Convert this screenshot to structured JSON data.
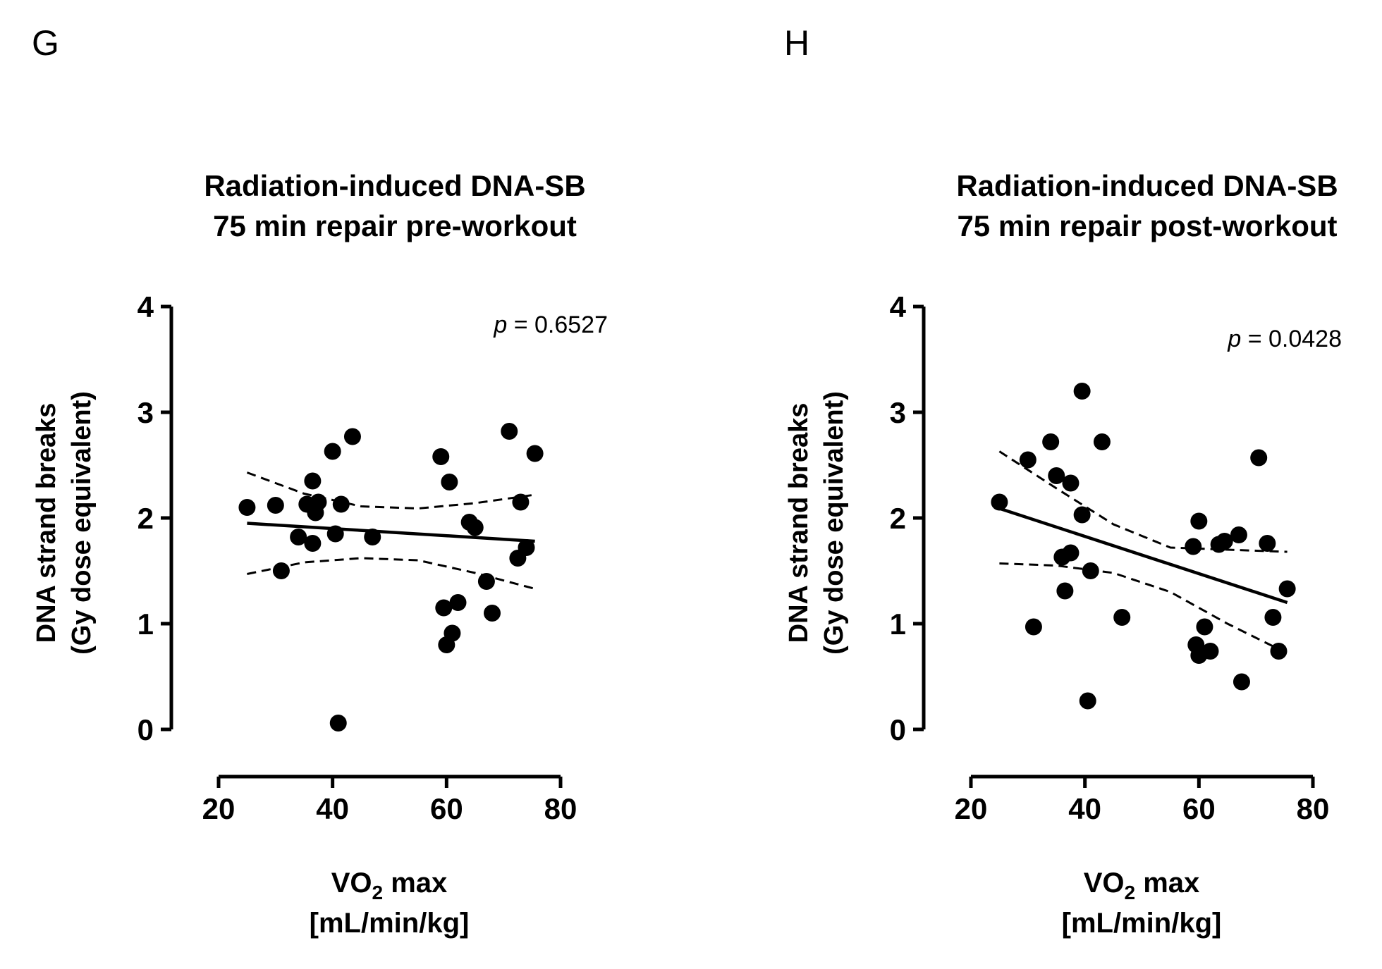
{
  "chart_data": [
    {
      "type": "scatter",
      "panel_label": "G",
      "title_lines": [
        "Radiation-induced DNA-SB",
        "75 min repair pre-workout"
      ],
      "ylabel_lines": [
        "DNA strand breaks",
        "(Gy dose equivalent)"
      ],
      "xlabel": {
        "main": "VO",
        "subscript": "2",
        "suffix": " max",
        "unit": "[mL/min/kg]"
      },
      "xlim": [
        20,
        80
      ],
      "ylim": [
        0,
        4
      ],
      "xticks": [
        20,
        40,
        60,
        80
      ],
      "yticks": [
        0,
        1,
        2,
        3,
        4
      ],
      "p_value": {
        "symbol": "p",
        "text": " = 0.6527"
      },
      "points": [
        [
          25,
          2.1
        ],
        [
          30,
          2.12
        ],
        [
          31,
          1.5
        ],
        [
          34,
          1.82
        ],
        [
          35.5,
          2.13
        ],
        [
          36.5,
          1.76
        ],
        [
          36.5,
          2.35
        ],
        [
          37,
          2.05
        ],
        [
          37.5,
          2.15
        ],
        [
          40,
          2.63
        ],
        [
          40.5,
          1.85
        ],
        [
          41,
          0.06
        ],
        [
          41.5,
          2.13
        ],
        [
          43.5,
          2.77
        ],
        [
          47,
          1.82
        ],
        [
          59,
          2.58
        ],
        [
          59.5,
          1.15
        ],
        [
          60,
          0.8
        ],
        [
          60.5,
          2.34
        ],
        [
          61,
          0.91
        ],
        [
          62,
          1.2
        ],
        [
          64,
          1.96
        ],
        [
          65,
          1.91
        ],
        [
          67,
          1.4
        ],
        [
          68,
          1.1
        ],
        [
          71,
          2.82
        ],
        [
          72.5,
          1.62
        ],
        [
          73,
          2.15
        ],
        [
          74,
          1.72
        ],
        [
          75.5,
          2.61
        ]
      ],
      "fit": {
        "x": [
          25,
          75.5
        ],
        "y": [
          1.95,
          1.78
        ]
      },
      "ci_upper": {
        "x": [
          25,
          35,
          45,
          55,
          65,
          75.5
        ],
        "y": [
          2.43,
          2.23,
          2.11,
          2.09,
          2.14,
          2.22
        ]
      },
      "ci_lower": {
        "x": [
          25,
          35,
          45,
          55,
          65,
          75.5
        ],
        "y": [
          1.47,
          1.58,
          1.62,
          1.6,
          1.48,
          1.33
        ]
      }
    },
    {
      "type": "scatter",
      "panel_label": "H",
      "title_lines": [
        "Radiation-induced DNA-SB",
        "75 min repair post-workout"
      ],
      "ylabel_lines": [
        "DNA strand breaks",
        "(Gy dose equivalent)"
      ],
      "xlabel": {
        "main": "VO",
        "subscript": "2",
        "suffix": " max",
        "unit": "[mL/min/kg]"
      },
      "xlim": [
        20,
        80
      ],
      "ylim": [
        0,
        4
      ],
      "xticks": [
        20,
        40,
        60,
        80
      ],
      "yticks": [
        0,
        1,
        2,
        3,
        4
      ],
      "p_value": {
        "symbol": "p",
        "text": " = 0.0428"
      },
      "points": [
        [
          25,
          2.15
        ],
        [
          30,
          2.55
        ],
        [
          31,
          0.97
        ],
        [
          34,
          2.72
        ],
        [
          35,
          2.4
        ],
        [
          36,
          1.63
        ],
        [
          36.5,
          1.31
        ],
        [
          37.5,
          1.67
        ],
        [
          37.5,
          2.33
        ],
        [
          39.5,
          3.2
        ],
        [
          39.5,
          2.03
        ],
        [
          40.5,
          0.27
        ],
        [
          41,
          1.5
        ],
        [
          43,
          2.72
        ],
        [
          46.5,
          1.06
        ],
        [
          59,
          1.73
        ],
        [
          59.5,
          0.8
        ],
        [
          60,
          0.7
        ],
        [
          60,
          1.97
        ],
        [
          61,
          0.97
        ],
        [
          62,
          0.74
        ],
        [
          63.5,
          1.75
        ],
        [
          64.5,
          1.78
        ],
        [
          67,
          1.84
        ],
        [
          67.5,
          0.45
        ],
        [
          70.5,
          2.57
        ],
        [
          72,
          1.76
        ],
        [
          73,
          1.06
        ],
        [
          74,
          0.74
        ],
        [
          75.5,
          1.33
        ]
      ],
      "fit": {
        "x": [
          25,
          75.5
        ],
        "y": [
          2.09,
          1.2
        ]
      },
      "ci_upper": {
        "x": [
          25,
          35,
          45,
          55,
          65,
          75.5
        ],
        "y": [
          2.63,
          2.28,
          1.94,
          1.72,
          1.7,
          1.68
        ]
      },
      "ci_lower": {
        "x": [
          25,
          35,
          45,
          55,
          65,
          75.5
        ],
        "y": [
          1.57,
          1.55,
          1.48,
          1.3,
          1.0,
          0.72
        ]
      }
    }
  ]
}
